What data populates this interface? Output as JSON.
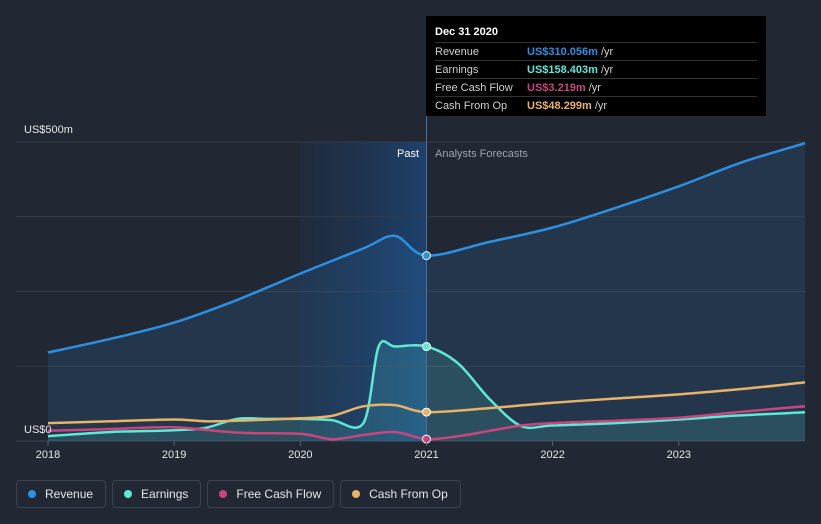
{
  "chart_data": {
    "type": "line",
    "y_axis_labels": {
      "top": "US$500m",
      "bottom": "US$0"
    },
    "ylim": [
      0,
      500
    ],
    "x_ticks": [
      "2018",
      "2019",
      "2020",
      "2021",
      "2022",
      "2023"
    ],
    "x_tick_values": [
      2018,
      2019,
      2020,
      2021,
      2022,
      2023
    ],
    "xlim": [
      2018,
      2024
    ],
    "divider_x": 2021,
    "past_label": "Past",
    "forecast_label": "Analysts Forecasts",
    "series": [
      {
        "name": "Revenue",
        "color": "#2d8fe0",
        "area": true,
        "points": [
          [
            2018,
            148
          ],
          [
            2018.5,
            171
          ],
          [
            2019,
            198
          ],
          [
            2019.5,
            236
          ],
          [
            2020,
            280
          ],
          [
            2020.5,
            322
          ],
          [
            2020.75,
            343
          ],
          [
            2021,
            310
          ],
          [
            2021.5,
            333
          ],
          [
            2022,
            357
          ],
          [
            2022.5,
            390
          ],
          [
            2023,
            426
          ],
          [
            2023.5,
            466
          ],
          [
            2024,
            498
          ]
        ]
      },
      {
        "name": "Earnings",
        "color": "#5ee8d6",
        "area": true,
        "points": [
          [
            2018,
            8
          ],
          [
            2018.5,
            15
          ],
          [
            2019,
            18
          ],
          [
            2019.25,
            22
          ],
          [
            2019.5,
            37
          ],
          [
            2019.75,
            37
          ],
          [
            2020,
            37
          ],
          [
            2020.25,
            35
          ],
          [
            2020.5,
            30
          ],
          [
            2020.62,
            158
          ],
          [
            2020.75,
            158
          ],
          [
            2021,
            158
          ],
          [
            2021.25,
            130
          ],
          [
            2021.5,
            70
          ],
          [
            2021.75,
            25
          ],
          [
            2022,
            26
          ],
          [
            2022.5,
            30
          ],
          [
            2023,
            36
          ],
          [
            2023.5,
            43
          ],
          [
            2024,
            48
          ]
        ]
      },
      {
        "name": "Free Cash Flow",
        "color": "#c9457f",
        "area": false,
        "points": [
          [
            2018,
            17
          ],
          [
            2018.5,
            20
          ],
          [
            2019,
            23
          ],
          [
            2019.5,
            14
          ],
          [
            2020,
            12
          ],
          [
            2020.25,
            3
          ],
          [
            2020.5,
            10
          ],
          [
            2020.75,
            15
          ],
          [
            2021,
            3.2
          ],
          [
            2021.25,
            8
          ],
          [
            2021.5,
            17
          ],
          [
            2021.75,
            26
          ],
          [
            2022,
            30
          ],
          [
            2022.5,
            34
          ],
          [
            2023,
            39
          ],
          [
            2023.5,
            49
          ],
          [
            2024,
            58
          ]
        ]
      },
      {
        "name": "Cash From Op",
        "color": "#e8b267",
        "area": false,
        "points": [
          [
            2018,
            30
          ],
          [
            2018.5,
            33
          ],
          [
            2019,
            36
          ],
          [
            2019.25,
            33
          ],
          [
            2019.5,
            34
          ],
          [
            2020,
            38
          ],
          [
            2020.25,
            42
          ],
          [
            2020.5,
            58
          ],
          [
            2020.75,
            60
          ],
          [
            2021,
            48.3
          ],
          [
            2021.5,
            55
          ],
          [
            2022,
            64
          ],
          [
            2022.5,
            71
          ],
          [
            2023,
            78
          ],
          [
            2023.5,
            87
          ],
          [
            2024,
            98
          ]
        ]
      }
    ]
  },
  "tooltip": {
    "date": "Dec 31 2020",
    "rows": [
      {
        "name": "Revenue",
        "value": "US$310.056m",
        "unit": "/yr",
        "color": "#2d8fe0"
      },
      {
        "name": "Earnings",
        "value": "US$158.403m",
        "unit": "/yr",
        "color": "#5ee8d6"
      },
      {
        "name": "Free Cash Flow",
        "value": "US$3.219m",
        "unit": "/yr",
        "color": "#c9457f"
      },
      {
        "name": "Cash From Op",
        "value": "US$48.299m",
        "unit": "/yr",
        "color": "#e8b267"
      }
    ]
  },
  "legend": [
    {
      "label": "Revenue",
      "color": "#2d8fe0"
    },
    {
      "label": "Earnings",
      "color": "#5ee8d6"
    },
    {
      "label": "Free Cash Flow",
      "color": "#c9457f"
    },
    {
      "label": "Cash From Op",
      "color": "#e8b267"
    }
  ]
}
